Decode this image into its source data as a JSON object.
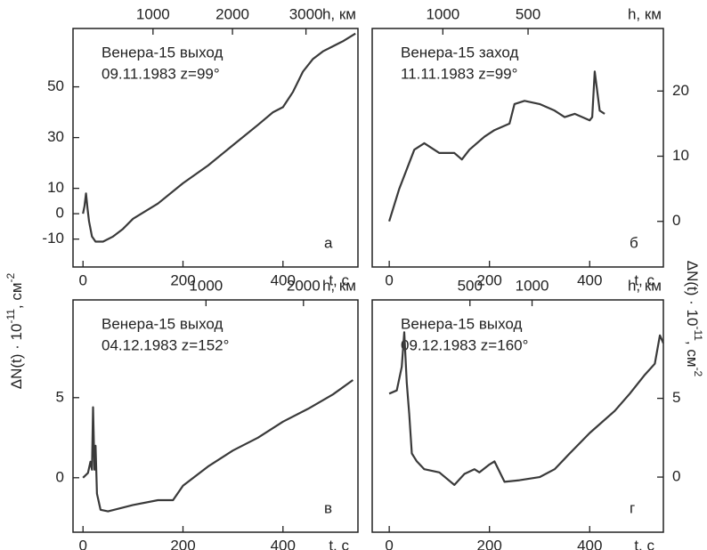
{
  "chart_data": [
    {
      "type": "line",
      "panel_label": "а",
      "annotations": [
        "Венера-15 выход",
        "09.11.1983 z=99°"
      ],
      "x_label": "t, c",
      "x2_label": "h, км",
      "y_axis_side": "left",
      "y_label": [
        "ΔN(t) · 10",
        "-11",
        ", см",
        "-2"
      ],
      "xlim": [
        -20,
        550
      ],
      "xticks": [
        0,
        200,
        400
      ],
      "ylim": [
        -21,
        73
      ],
      "yticks": [
        -10,
        0,
        10,
        30,
        50
      ],
      "h_ticks": [
        {
          "h": 1000,
          "t": 140
        },
        {
          "h": 2000,
          "t": 299
        },
        {
          "h": 3000,
          "t": 446
        }
      ],
      "x": [
        0,
        3,
        6,
        9,
        12,
        18,
        25,
        40,
        60,
        80,
        100,
        150,
        200,
        250,
        300,
        350,
        380,
        400,
        420,
        440,
        460,
        480,
        500,
        520,
        545
      ],
      "series": [
        {
          "color": "#3a3a3a",
          "values": [
            0,
            3,
            8,
            2,
            -3,
            -9,
            -11,
            -11,
            -9,
            -6,
            -2,
            4,
            12,
            19,
            27,
            35,
            40,
            42,
            48,
            56,
            61,
            64,
            66,
            68,
            71
          ]
        }
      ]
    },
    {
      "type": "line",
      "panel_label": "б",
      "annotations": [
        "Венера-15 заход",
        "11.11.1983 z=99°"
      ],
      "x_label": "t, c",
      "x2_label": "h, км",
      "y_axis_side": "right",
      "y_label": [
        "ΔN(t) · 10",
        "-11",
        ", см",
        "-2"
      ],
      "xlim": [
        -34,
        547
      ],
      "xticks": [
        0,
        200,
        400
      ],
      "ylim": [
        -7,
        29.6
      ],
      "yticks": [
        0,
        10,
        20
      ],
      "h_ticks": [
        {
          "h": 1000,
          "t": 107
        },
        {
          "h": 500,
          "t": 277
        }
      ],
      "x": [
        0,
        20,
        50,
        70,
        100,
        130,
        145,
        160,
        190,
        210,
        240,
        250,
        270,
        300,
        330,
        350,
        370,
        400,
        405,
        410,
        420,
        430
      ],
      "series": [
        {
          "color": "#3a3a3a",
          "values": [
            0,
            5,
            11,
            12,
            10.5,
            10.5,
            9.5,
            11,
            13,
            14,
            15,
            18,
            18.5,
            18,
            17,
            16,
            16.5,
            15.5,
            16,
            23,
            17,
            16.5
          ]
        }
      ]
    },
    {
      "type": "line",
      "panel_label": "в",
      "annotations": [
        "Венера-15 выход",
        "04.12.1983 z=152°"
      ],
      "x_label": "t, c",
      "x2_label": "h, км",
      "y_axis_side": "left",
      "xlim": [
        -20,
        550
      ],
      "xticks": [
        0,
        200,
        400
      ],
      "ylim": [
        -3.4,
        11.1
      ],
      "yticks": [
        0,
        5
      ],
      "h_ticks": [
        {
          "h": 1000,
          "t": 246
        },
        {
          "h": 2000,
          "t": 441
        }
      ],
      "x": [
        0,
        10,
        15,
        18,
        20,
        23,
        25,
        28,
        35,
        50,
        100,
        150,
        180,
        200,
        250,
        300,
        350,
        400,
        450,
        500,
        540
      ],
      "series": [
        {
          "color": "#3a3a3a",
          "values": [
            0,
            0.3,
            1,
            0.5,
            4.4,
            0.5,
            2,
            -1,
            -2,
            -2.1,
            -1.7,
            -1.4,
            -1.4,
            -0.5,
            0.7,
            1.7,
            2.5,
            3.5,
            4.3,
            5.2,
            6.1
          ]
        }
      ]
    },
    {
      "type": "line",
      "panel_label": "г",
      "annotations": [
        "Венера-15 выход",
        "09.12.1983 z=160°"
      ],
      "x_label": "t, c",
      "x2_label": "h, км",
      "y_axis_side": "right",
      "xlim": [
        -34,
        547
      ],
      "xticks": [
        0,
        200,
        400
      ],
      "ylim": [
        -3.5,
        11.25
      ],
      "yticks": [
        0,
        5
      ],
      "h_ticks": [
        {
          "h": 500,
          "t": 161
        },
        {
          "h": 1000,
          "t": 285
        }
      ],
      "x": [
        0,
        15,
        25,
        30,
        35,
        40,
        45,
        55,
        70,
        100,
        130,
        150,
        170,
        180,
        200,
        210,
        230,
        260,
        300,
        330,
        360,
        400,
        450,
        480,
        510,
        530,
        540,
        547
      ],
      "series": [
        {
          "color": "#3a3a3a",
          "values": [
            5.3,
            5.5,
            7,
            9.2,
            6,
            4,
            1.5,
            1,
            0.5,
            0.3,
            -0.5,
            0.2,
            0.5,
            0.3,
            0.8,
            1,
            -0.3,
            -0.2,
            0,
            0.5,
            1.5,
            2.8,
            4.2,
            5.3,
            6.5,
            7.2,
            9,
            8.5
          ]
        }
      ]
    }
  ]
}
